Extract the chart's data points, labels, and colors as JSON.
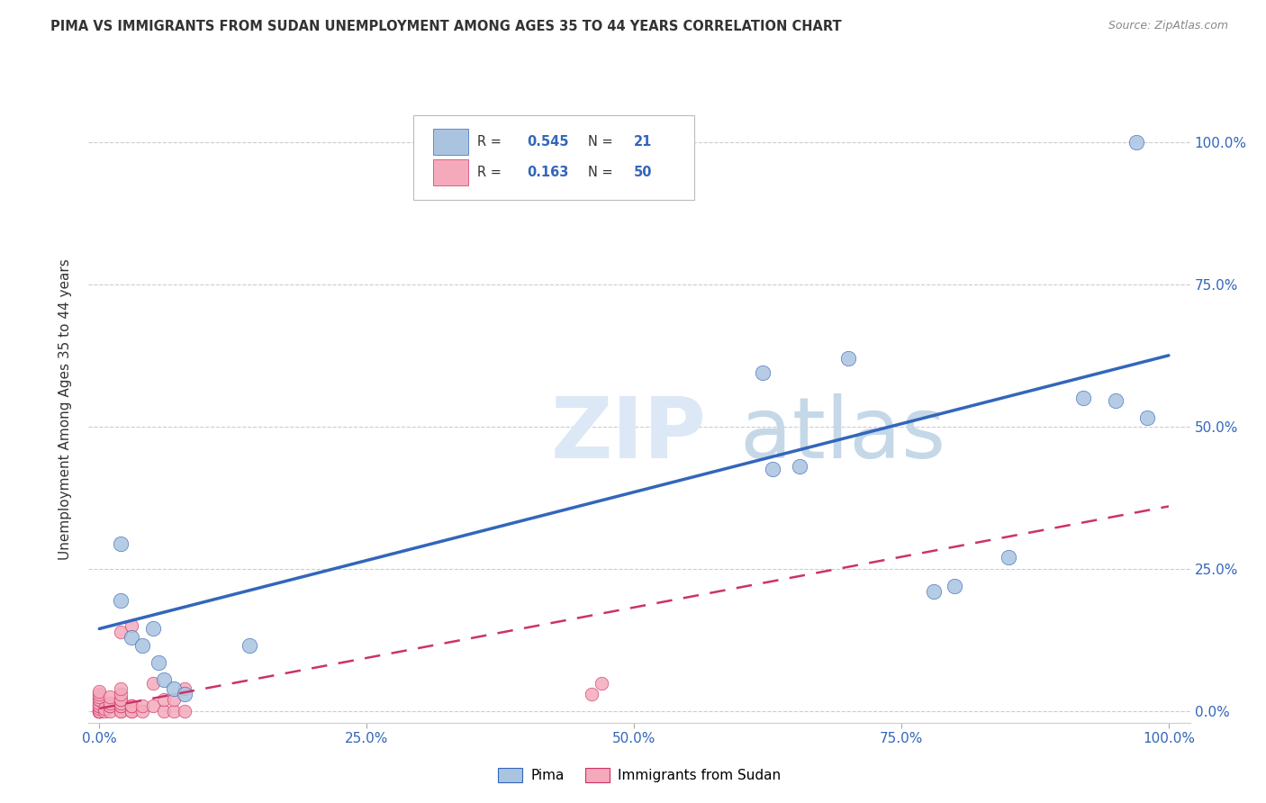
{
  "title": "PIMA VS IMMIGRANTS FROM SUDAN UNEMPLOYMENT AMONG AGES 35 TO 44 YEARS CORRELATION CHART",
  "source": "Source: ZipAtlas.com",
  "ylabel": "Unemployment Among Ages 35 to 44 years",
  "ytick_labels": [
    "0.0%",
    "25.0%",
    "50.0%",
    "75.0%",
    "100.0%"
  ],
  "ytick_values": [
    0,
    0.25,
    0.5,
    0.75,
    1.0
  ],
  "xtick_values": [
    0,
    0.25,
    0.5,
    0.75,
    1.0
  ],
  "xtick_labels": [
    "0.0%",
    "25.0%",
    "50.0%",
    "75.0%",
    "100.0%"
  ],
  "pima_R": 0.545,
  "pima_N": 21,
  "sudan_R": 0.163,
  "sudan_N": 50,
  "pima_color": "#aac4e0",
  "pima_line_color": "#3366bb",
  "sudan_color": "#f4aabb",
  "sudan_line_color": "#cc3366",
  "watermark_zip_color": "#dce8f5",
  "watermark_atlas_color": "#c5d8e8",
  "grid_color": "#cccccc",
  "background_color": "#ffffff",
  "pima_scatter_x": [
    0.02,
    0.02,
    0.03,
    0.04,
    0.05,
    0.055,
    0.06,
    0.07,
    0.08,
    0.14,
    0.62,
    0.63,
    0.7,
    0.78,
    0.8,
    0.85,
    0.92,
    0.95,
    0.97,
    0.98,
    0.655
  ],
  "pima_scatter_y": [
    0.295,
    0.195,
    0.13,
    0.115,
    0.145,
    0.085,
    0.055,
    0.04,
    0.03,
    0.115,
    0.595,
    0.425,
    0.62,
    0.21,
    0.22,
    0.27,
    0.55,
    0.545,
    1.0,
    0.515,
    0.43
  ],
  "sudan_scatter_x": [
    0.0,
    0.0,
    0.0,
    0.0,
    0.0,
    0.0,
    0.0,
    0.0,
    0.0,
    0.0,
    0.0,
    0.0,
    0.0,
    0.0,
    0.0,
    0.0,
    0.005,
    0.005,
    0.01,
    0.01,
    0.01,
    0.01,
    0.01,
    0.02,
    0.02,
    0.02,
    0.02,
    0.02,
    0.02,
    0.02,
    0.02,
    0.02,
    0.02,
    0.03,
    0.03,
    0.03,
    0.03,
    0.03,
    0.04,
    0.04,
    0.05,
    0.05,
    0.06,
    0.06,
    0.07,
    0.07,
    0.08,
    0.08,
    0.46,
    0.47
  ],
  "sudan_scatter_y": [
    0.0,
    0.0,
    0.0,
    0.0,
    0.0,
    0.0,
    0.0,
    0.005,
    0.01,
    0.01,
    0.015,
    0.02,
    0.02,
    0.025,
    0.03,
    0.035,
    0.0,
    0.005,
    0.0,
    0.01,
    0.01,
    0.015,
    0.025,
    0.0,
    0.0,
    0.01,
    0.01,
    0.015,
    0.02,
    0.02,
    0.03,
    0.04,
    0.14,
    0.15,
    0.0,
    0.0,
    0.01,
    0.01,
    0.0,
    0.01,
    0.01,
    0.05,
    0.0,
    0.02,
    0.0,
    0.02,
    0.0,
    0.04,
    0.03,
    0.05
  ],
  "pima_trend_x0": 0.0,
  "pima_trend_y0": 0.145,
  "pima_trend_x1": 1.0,
  "pima_trend_y1": 0.625,
  "sudan_trend_x0": 0.0,
  "sudan_trend_y0": 0.005,
  "sudan_trend_x1": 1.0,
  "sudan_trend_y1": 0.36
}
